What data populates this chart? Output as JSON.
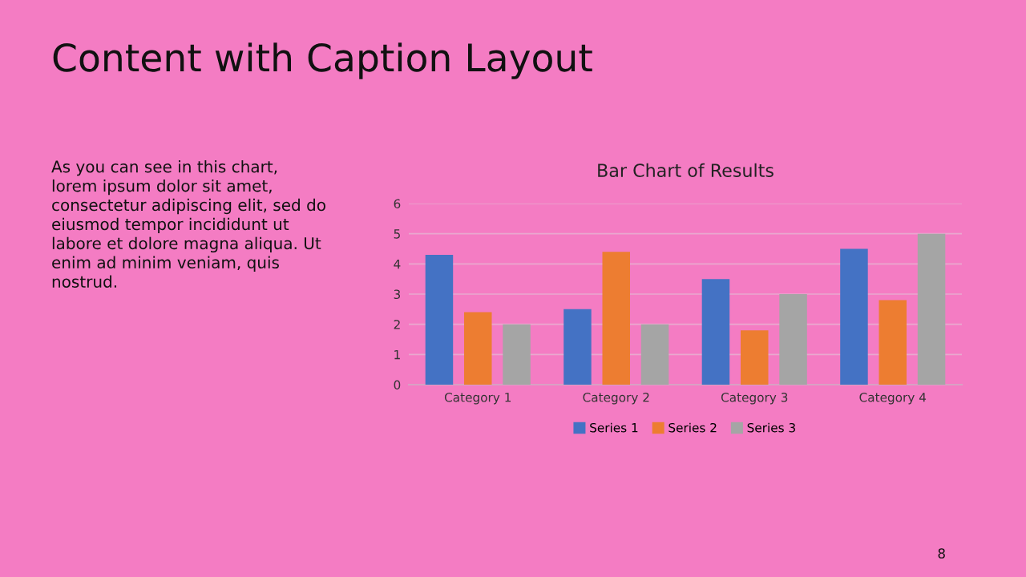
{
  "chart_data": {
    "type": "bar",
    "title": "Bar Chart of Results",
    "categories": [
      "Category 1",
      "Category 2",
      "Category 3",
      "Category 4"
    ],
    "series": [
      {
        "name": "Series 1",
        "color": "#4472c4",
        "values": [
          4.3,
          2.5,
          3.5,
          4.5
        ]
      },
      {
        "name": "Series 2",
        "color": "#ed7d31",
        "values": [
          2.4,
          4.4,
          1.8,
          2.8
        ]
      },
      {
        "name": "Series 3",
        "color": "#a5a5a5",
        "values": [
          2,
          2,
          3,
          5
        ]
      }
    ],
    "ylim": [
      0,
      6
    ],
    "yticks": [
      0,
      1,
      2,
      3,
      4,
      5,
      6
    ],
    "grid": "y",
    "legend": "bottom",
    "annotations": [
      "Content with Caption Layout",
      "As you can see in this chart,\nlorem ipsum dolor sit amet,\nconsectetur adipiscing elit, sed do\neiusmod tempor incididunt ut\nlabore et dolore magna aliqua. Ut\nenim ad minim veniam, quis\nnostrud.",
      "8"
    ]
  }
}
